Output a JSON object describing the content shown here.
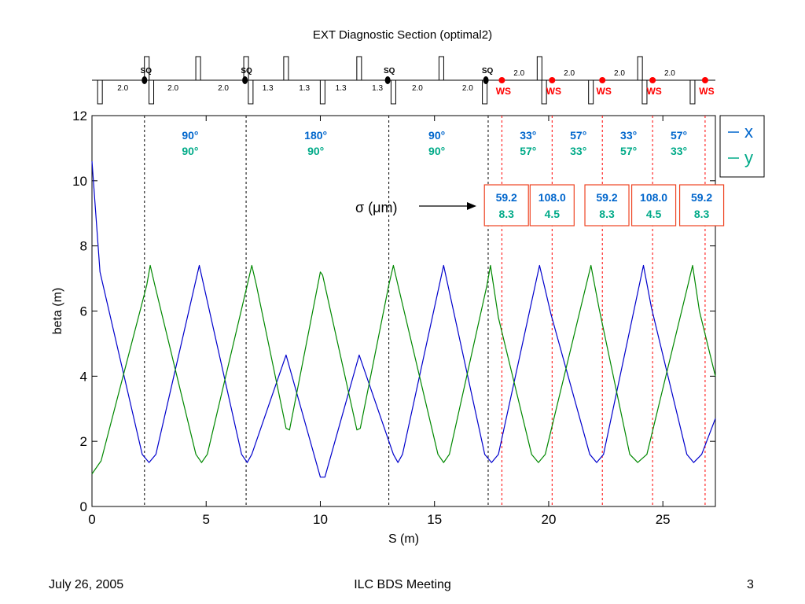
{
  "title": "EXT Diagnostic Section (optimal2)",
  "footer": {
    "date": "July 26, 2005",
    "meeting": "ILC BDS Meeting",
    "page": "3"
  },
  "colors": {
    "x": "#0000cc",
    "y": "#008800",
    "x_label": "#0066cc",
    "y_label": "#00aa88",
    "ws": "#ff0000",
    "box": "#ee4422"
  },
  "lattice": {
    "quads": [
      {
        "s": 0.35,
        "side": "down"
      },
      {
        "s": 2.4,
        "side": "up"
      },
      {
        "s": 2.6,
        "side": "down"
      },
      {
        "s": 4.65,
        "side": "up"
      },
      {
        "s": 6.75,
        "side": "up"
      },
      {
        "s": 6.95,
        "side": "down"
      },
      {
        "s": 8.5,
        "side": "up"
      },
      {
        "s": 10.1,
        "side": "down"
      },
      {
        "s": 11.7,
        "side": "up"
      },
      {
        "s": 13.2,
        "side": "down"
      },
      {
        "s": 15.3,
        "side": "up"
      },
      {
        "s": 17.2,
        "side": "down"
      },
      {
        "s": 19.6,
        "side": "up"
      },
      {
        "s": 19.8,
        "side": "down"
      },
      {
        "s": 21.85,
        "side": "down"
      },
      {
        "s": 24.0,
        "side": "up"
      },
      {
        "s": 24.2,
        "side": "down"
      },
      {
        "s": 26.3,
        "side": "down"
      }
    ],
    "skew_quads": [
      {
        "s": 2.3,
        "label": "SQ"
      },
      {
        "s": 6.7,
        "label": "SQ"
      },
      {
        "s": 12.95,
        "label": "SQ"
      },
      {
        "s": 17.25,
        "label": "SQ"
      }
    ],
    "wire_scanners": [
      {
        "s": 17.95,
        "label": "WS"
      },
      {
        "s": 20.15,
        "label": "WS"
      },
      {
        "s": 22.35,
        "label": "WS"
      },
      {
        "s": 24.55,
        "label": "WS"
      },
      {
        "s": 26.85,
        "label": "WS"
      }
    ],
    "drift_labels_below": [
      {
        "s": 1.35,
        "text": "2.0"
      },
      {
        "s": 3.55,
        "text": "2.0"
      },
      {
        "s": 5.75,
        "text": "2.0"
      },
      {
        "s": 7.7,
        "text": "1.3"
      },
      {
        "s": 9.3,
        "text": "1.3"
      },
      {
        "s": 10.9,
        "text": "1.3"
      },
      {
        "s": 12.5,
        "text": "1.3"
      },
      {
        "s": 14.25,
        "text": "2.0"
      },
      {
        "s": 16.45,
        "text": "2.0"
      }
    ],
    "drift_labels_above": [
      {
        "s": 18.7,
        "text": "2.0"
      },
      {
        "s": 20.9,
        "text": "2.0"
      },
      {
        "s": 23.1,
        "text": "2.0"
      },
      {
        "s": 25.3,
        "text": "2.0"
      }
    ]
  },
  "phase_labels": [
    {
      "s": 4.3,
      "x": "90°",
      "y": "90°"
    },
    {
      "s": 9.8,
      "x": "180°",
      "y": "90°"
    },
    {
      "s": 15.1,
      "x": "90°",
      "y": "90°"
    },
    {
      "s": 19.1,
      "x": "33°",
      "y": "57°"
    },
    {
      "s": 21.3,
      "x": "57°",
      "y": "33°"
    },
    {
      "s": 23.5,
      "x": "33°",
      "y": "57°"
    },
    {
      "s": 25.7,
      "x": "57°",
      "y": "33°"
    }
  ],
  "sigma_label": "σ (μm)",
  "sigma_boxes": [
    {
      "s": 18.15,
      "x": "59.2",
      "y": "8.3"
    },
    {
      "s": 20.15,
      "x": "108.0",
      "y": "4.5"
    },
    {
      "s": 22.55,
      "x": "59.2",
      "y": "8.3"
    },
    {
      "s": 24.6,
      "x": "108.0",
      "y": "4.5"
    },
    {
      "s": 26.7,
      "x": "59.2",
      "y": "8.3"
    }
  ],
  "chart_data": {
    "type": "line",
    "title": "",
    "xlabel": "S (m)",
    "ylabel": "beta (m)",
    "xlim": [
      0,
      27.3
    ],
    "ylim": [
      0,
      12
    ],
    "xticks": [
      0,
      5,
      10,
      15,
      20,
      25
    ],
    "yticks": [
      0,
      2,
      4,
      6,
      8,
      10,
      12
    ],
    "grid": false,
    "legend": "top-right",
    "vlines_black": [
      2.3,
      6.75,
      13.0,
      17.35
    ],
    "vlines_red": [
      17.95,
      20.15,
      22.35,
      24.55,
      26.85
    ],
    "series": [
      {
        "name": "x",
        "color": "#0000cc",
        "points": [
          [
            0,
            10.6
          ],
          [
            0.35,
            7.2
          ],
          [
            2.2,
            1.6
          ],
          [
            2.5,
            1.35
          ],
          [
            2.8,
            1.6
          ],
          [
            4.7,
            7.4
          ],
          [
            6.55,
            1.6
          ],
          [
            6.8,
            1.35
          ],
          [
            7.0,
            1.6
          ],
          [
            8.5,
            4.65
          ],
          [
            10.0,
            0.9
          ],
          [
            10.2,
            0.9
          ],
          [
            11.7,
            4.65
          ],
          [
            13.2,
            1.6
          ],
          [
            13.4,
            1.35
          ],
          [
            13.6,
            1.6
          ],
          [
            15.4,
            7.4
          ],
          [
            17.2,
            1.6
          ],
          [
            17.5,
            1.35
          ],
          [
            17.8,
            1.6
          ],
          [
            19.6,
            7.4
          ],
          [
            20.1,
            5.9
          ],
          [
            21.8,
            1.6
          ],
          [
            22.1,
            1.35
          ],
          [
            22.4,
            1.6
          ],
          [
            24.15,
            7.4
          ],
          [
            24.5,
            6.1
          ],
          [
            26.05,
            1.6
          ],
          [
            26.35,
            1.35
          ],
          [
            26.7,
            1.6
          ],
          [
            27.3,
            2.7
          ]
        ]
      },
      {
        "name": "y",
        "color": "#008800",
        "points": [
          [
            0,
            1.0
          ],
          [
            0.4,
            1.4
          ],
          [
            2.4,
            6.8
          ],
          [
            2.55,
            7.4
          ],
          [
            2.75,
            6.8
          ],
          [
            4.55,
            1.6
          ],
          [
            4.8,
            1.35
          ],
          [
            5.05,
            1.6
          ],
          [
            6.8,
            6.8
          ],
          [
            7.0,
            7.4
          ],
          [
            7.2,
            6.8
          ],
          [
            8.5,
            2.4
          ],
          [
            8.65,
            2.35
          ],
          [
            10.0,
            7.2
          ],
          [
            10.1,
            7.1
          ],
          [
            11.6,
            2.35
          ],
          [
            11.75,
            2.4
          ],
          [
            13.0,
            6.8
          ],
          [
            13.2,
            7.4
          ],
          [
            13.4,
            6.8
          ],
          [
            15.15,
            1.6
          ],
          [
            15.4,
            1.35
          ],
          [
            15.65,
            1.6
          ],
          [
            17.3,
            6.8
          ],
          [
            17.45,
            7.4
          ],
          [
            17.8,
            5.8
          ],
          [
            19.25,
            1.6
          ],
          [
            19.55,
            1.35
          ],
          [
            19.85,
            1.6
          ],
          [
            21.85,
            7.4
          ],
          [
            22.2,
            6.1
          ],
          [
            23.55,
            1.6
          ],
          [
            23.9,
            1.35
          ],
          [
            24.3,
            1.6
          ],
          [
            26.1,
            6.8
          ],
          [
            26.3,
            7.4
          ],
          [
            26.6,
            6.0
          ],
          [
            27.3,
            4.0
          ]
        ]
      }
    ]
  }
}
